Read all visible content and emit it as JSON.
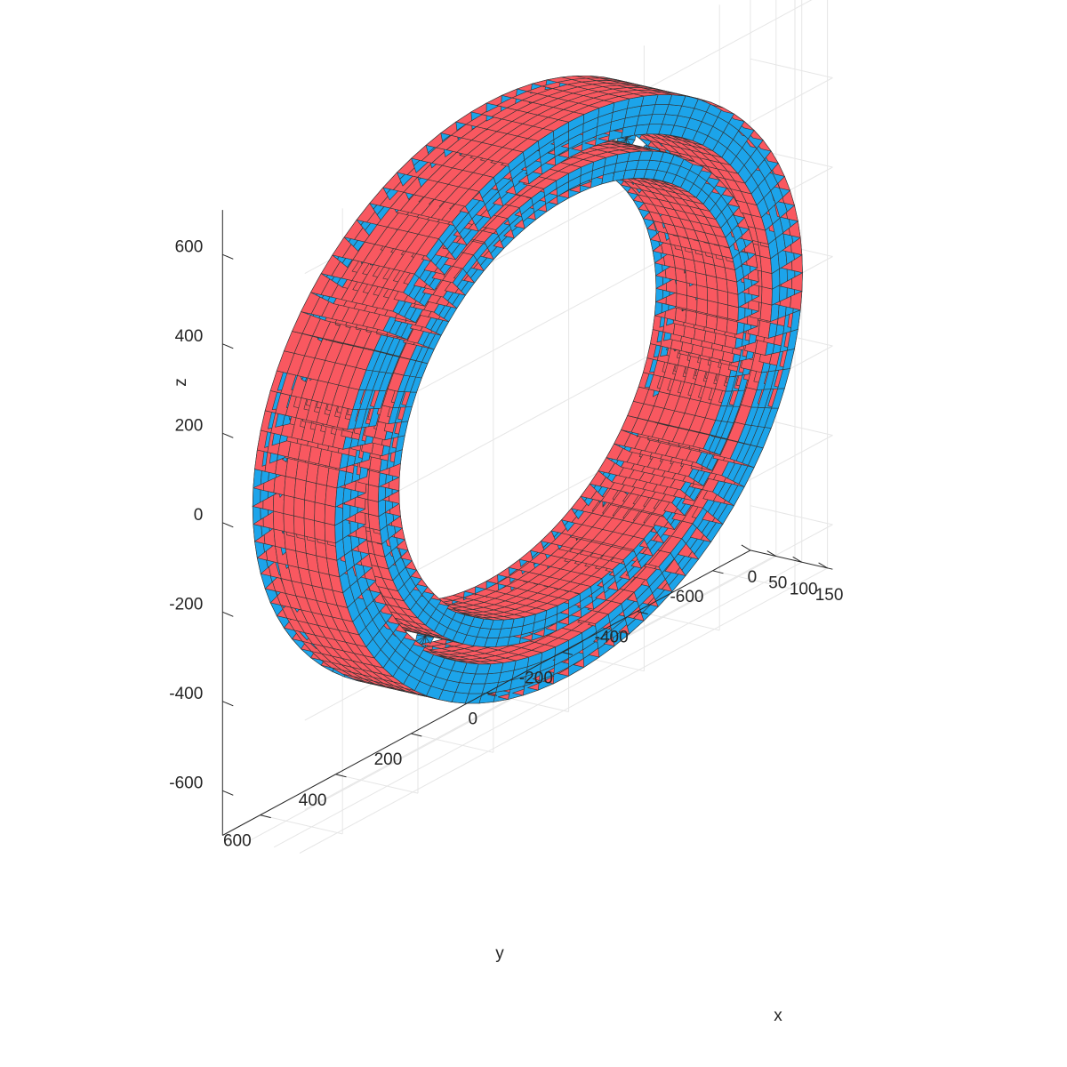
{
  "chart_data": {
    "type": "surface",
    "description_terms": [
      "3D mesh surface plot of a cylindrical roller bearing"
    ],
    "axes": {
      "x": {
        "label": "x",
        "ticks": [
          "0",
          "50",
          "100",
          "150"
        ],
        "range": [
          0,
          160
        ]
      },
      "y": {
        "label": "y",
        "ticks": [
          "600",
          "400",
          "200",
          "0",
          "-200",
          "-400",
          "-600"
        ],
        "range": [
          -700,
          700
        ]
      },
      "z": {
        "label": "z",
        "ticks": [
          "600",
          "400",
          "200",
          "0",
          "-200",
          "-400",
          "-600"
        ],
        "range": [
          -700,
          700
        ]
      }
    },
    "grid": true,
    "surfaces": [
      {
        "name": "outer ring",
        "radius_outer": 620,
        "radius_inner": 540,
        "width": 160,
        "color": "#f95860"
      },
      {
        "name": "rollers",
        "count": 40,
        "pitch_radius": 525,
        "roller_radius": 26,
        "color": "#1ca4ea"
      },
      {
        "name": "inner ring",
        "radius_outer": 505,
        "radius_inner": 450,
        "width": 160,
        "color": "#f95860"
      }
    ],
    "face_color_blue": "#1ca4ea",
    "face_color_red": "#f95860",
    "edge_color": "#333333"
  }
}
